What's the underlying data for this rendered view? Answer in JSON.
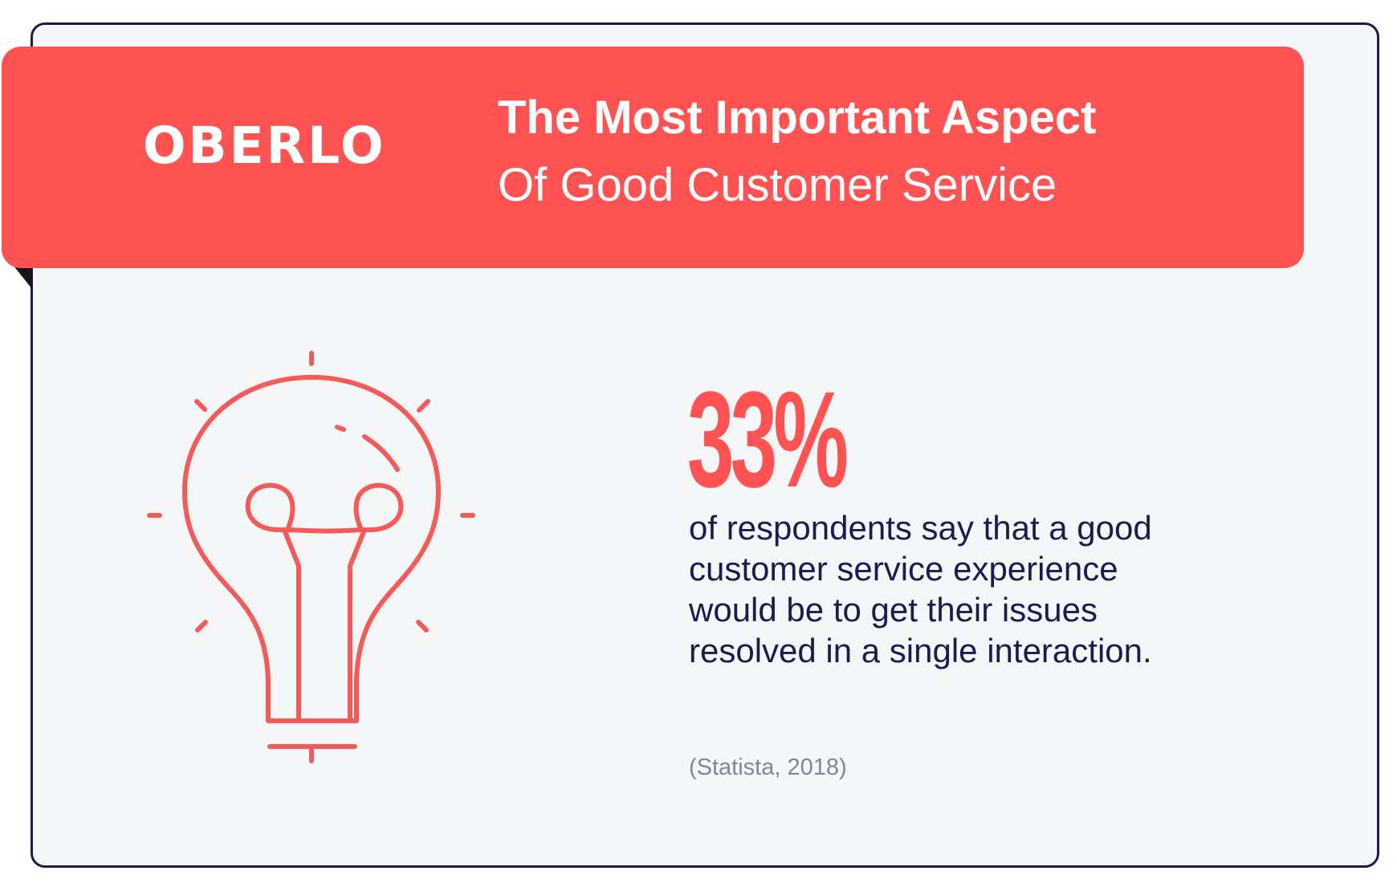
{
  "brand": {
    "logo_text": "OBERLO",
    "accent_color": "#ff5353",
    "navy_color": "#1c1b4f"
  },
  "header": {
    "title_line1": "The Most Important Aspect",
    "title_line2": "Of Good Customer Service"
  },
  "main": {
    "icon": "lightbulb-icon",
    "stat_value": "33%",
    "description": "of respondents say that a good customer service experience would be to get their issues resolved in a single interaction.",
    "source": "(Statista, 2018)"
  }
}
